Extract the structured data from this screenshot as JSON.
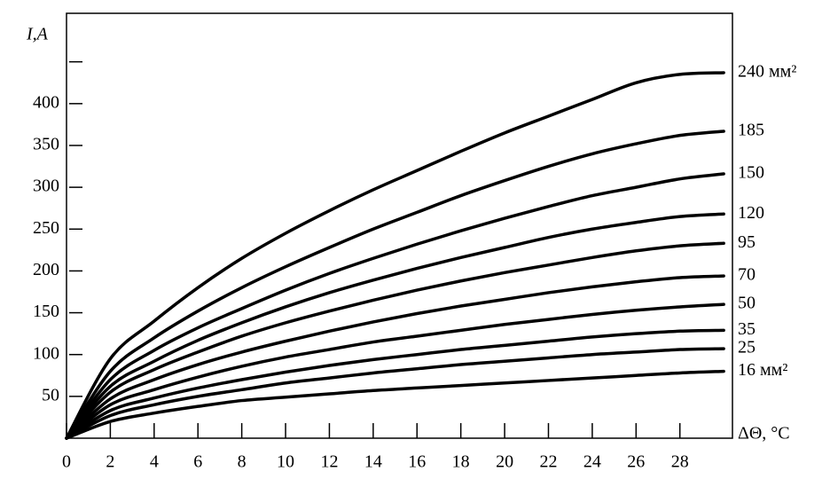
{
  "chart_data": {
    "type": "line",
    "y_label": "I,A",
    "x_label": "ΔΘ, °C",
    "x": [
      0,
      2,
      4,
      6,
      8,
      10,
      12,
      14,
      16,
      18,
      20,
      22,
      24,
      26,
      28,
      30
    ],
    "xlim": [
      0,
      30.4
    ],
    "xticks": [
      0,
      2,
      4,
      6,
      8,
      10,
      12,
      14,
      16,
      18,
      20,
      22,
      24,
      26,
      28
    ],
    "ylim": [
      0,
      508
    ],
    "yticks": [
      50,
      100,
      150,
      200,
      250,
      300,
      350,
      400,
      {
        "value": 450,
        "label": null
      }
    ],
    "series": [
      {
        "name": "240 мм²",
        "color": "#000000",
        "values": [
          0,
          95,
          140,
          180,
          215,
          245,
          272,
          297,
          320,
          343,
          365,
          385,
          405,
          425,
          435,
          437
        ]
      },
      {
        "name": "185",
        "color": "#000000",
        "values": [
          0,
          80,
          120,
          152,
          180,
          205,
          228,
          250,
          270,
          290,
          308,
          325,
          340,
          352,
          362,
          367
        ]
      },
      {
        "name": "150",
        "color": "#000000",
        "values": [
          0,
          70,
          105,
          132,
          155,
          177,
          197,
          215,
          232,
          248,
          263,
          277,
          290,
          300,
          310,
          316
        ]
      },
      {
        "name": "120",
        "color": "#000000",
        "values": [
          0,
          62,
          92,
          117,
          138,
          157,
          174,
          189,
          203,
          216,
          228,
          240,
          250,
          258,
          265,
          268
        ]
      },
      {
        "name": "95",
        "color": "#000000",
        "values": [
          0,
          55,
          82,
          103,
          122,
          138,
          152,
          165,
          177,
          188,
          198,
          207,
          216,
          224,
          230,
          233
        ]
      },
      {
        "name": "70",
        "color": "#000000",
        "values": [
          0,
          47,
          70,
          88,
          103,
          116,
          128,
          139,
          149,
          158,
          166,
          174,
          181,
          187,
          192,
          194
        ]
      },
      {
        "name": "50",
        "color": "#000000",
        "values": [
          0,
          40,
          58,
          73,
          86,
          97,
          106,
          115,
          122,
          129,
          136,
          142,
          148,
          153,
          157,
          160
        ]
      },
      {
        "name": "35",
        "color": "#000000",
        "values": [
          0,
          33,
          48,
          60,
          70,
          79,
          87,
          94,
          100,
          106,
          111,
          116,
          121,
          125,
          128,
          129
        ]
      },
      {
        "name": "25",
        "color": "#000000",
        "values": [
          0,
          27,
          40,
          50,
          58,
          66,
          72,
          78,
          83,
          88,
          92,
          96,
          100,
          103,
          106,
          107
        ]
      },
      {
        "name": "16 мм²",
        "color": "#000000",
        "values": [
          0,
          20,
          30,
          38,
          45,
          49,
          53,
          57,
          60,
          63,
          66,
          69,
          72,
          75,
          78,
          80
        ]
      }
    ]
  }
}
